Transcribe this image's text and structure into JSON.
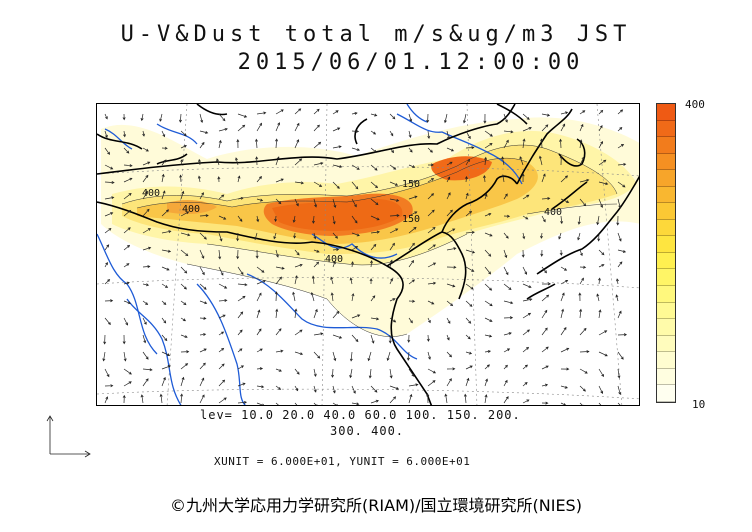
{
  "title": {
    "line1": "U-V&Dust total m/s&ug/m3 JST",
    "line2": "2015/06/01.12:00:00"
  },
  "colorbar": {
    "max_label": "400",
    "min_label": "10",
    "colors": [
      "#ef5a14",
      "#f06a18",
      "#f27c1c",
      "#f59022",
      "#f7a52a",
      "#f9b730",
      "#fbc834",
      "#fdd83a",
      "#fee540",
      "#fff050",
      "#fff566",
      "#fff87d",
      "#fffa94",
      "#fffbaa",
      "#fffcbd",
      "#fffdd0",
      "#fffee0",
      "#fffff0"
    ]
  },
  "contour_labels": [
    "400",
    "400",
    "150",
    "150",
    "400",
    "400"
  ],
  "legend": {
    "levels_line1": "lev= 10.0 20.0 40.0 60.0 100. 150. 200.",
    "levels_line2": "300. 400."
  },
  "units_text": "XUNIT = 6.000E+01, YUNIT = 6.000E+01",
  "credit": "©九州大学応用力学研究所(RIAM)/国立環境研究所(NIES)",
  "palette": {
    "coast": "#000000",
    "river": "#1e5bd6",
    "grid": "#888888"
  }
}
